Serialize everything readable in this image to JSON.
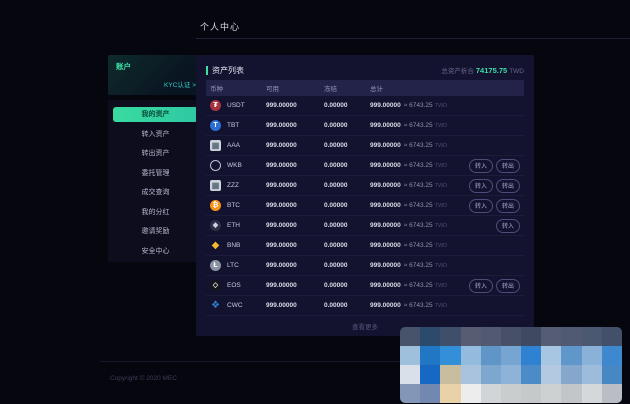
{
  "page": {
    "title": "个人中心",
    "copyright": "Copyright © 2020 MEC"
  },
  "sidebar": {
    "account_label": "账户",
    "kyc_link": "KYC认证 >",
    "menu": [
      {
        "label": "我的资产",
        "active": true
      },
      {
        "label": "转入资产",
        "active": false
      },
      {
        "label": "转出资产",
        "active": false
      },
      {
        "label": "委托管理",
        "active": false
      },
      {
        "label": "成交查询",
        "active": false
      },
      {
        "label": "我的分红",
        "active": false
      },
      {
        "label": "邀请奖励",
        "active": false
      },
      {
        "label": "安全中心",
        "active": false
      }
    ]
  },
  "assets": {
    "panel_title": "资产列表",
    "total_label": "总资产折合",
    "total_value": "74175.75",
    "total_currency": "TWD",
    "columns": [
      "币种",
      "可用",
      "冻结",
      "总计"
    ],
    "buttons": {
      "in": "转入",
      "out": "转出"
    },
    "load_more": "查看更多",
    "rows": [
      {
        "coin": "USDT",
        "available": "999.00000",
        "frozen": "0.00000",
        "total": "999.00000",
        "approx": "≈ 6743.25",
        "currency": "TWD",
        "actions": [],
        "icon": {
          "name": "usdt-icon",
          "glyph": "₮",
          "bg": "#a8333e",
          "fg": "#ffffff",
          "shape": "circle"
        }
      },
      {
        "coin": "TBT",
        "available": "999.00000",
        "frozen": "0.00000",
        "total": "999.00000",
        "approx": "≈ 6743.25",
        "currency": "TWD",
        "actions": [],
        "icon": {
          "name": "tbt-icon",
          "glyph": "T",
          "bg": "#2b6fd4",
          "fg": "#ffffff",
          "shape": "circle"
        }
      },
      {
        "coin": "AAA",
        "available": "999.00000",
        "frozen": "0.00000",
        "total": "999.00000",
        "approx": "≈ 6743.25",
        "currency": "TWD",
        "actions": [],
        "icon": {
          "name": "aaa-placeholder-icon",
          "glyph": "▦",
          "bg": "#ccd3dd",
          "fg": "#5b6b7d",
          "shape": "square"
        }
      },
      {
        "coin": "WKB",
        "available": "999.00000",
        "frozen": "0.00000",
        "total": "999.00000",
        "approx": "≈ 6743.25",
        "currency": "TWD",
        "actions": [
          "in",
          "out"
        ],
        "icon": {
          "name": "wkb-icon",
          "glyph": "",
          "bg": "transparent",
          "fg": "#b9c2cf",
          "shape": "ring"
        }
      },
      {
        "coin": "ZZZ",
        "available": "999.00000",
        "frozen": "0.00000",
        "total": "999.00000",
        "approx": "≈ 6743.25",
        "currency": "TWD",
        "actions": [
          "in",
          "out"
        ],
        "icon": {
          "name": "zzz-placeholder-icon",
          "glyph": "▦",
          "bg": "#ccd3dd",
          "fg": "#5b6b7d",
          "shape": "square"
        }
      },
      {
        "coin": "BTC",
        "available": "999.00000",
        "frozen": "0.00000",
        "total": "999.00000",
        "approx": "≈ 6743.25",
        "currency": "TWD",
        "actions": [
          "in",
          "out"
        ],
        "icon": {
          "name": "btc-icon",
          "glyph": "₿",
          "bg": "#f7931a",
          "fg": "#ffffff",
          "shape": "circle"
        }
      },
      {
        "coin": "ETH",
        "available": "999.00000",
        "frozen": "0.00000",
        "total": "999.00000",
        "approx": "≈ 6743.25",
        "currency": "TWD",
        "actions": [
          "in"
        ],
        "icon": {
          "name": "eth-icon",
          "glyph": "◆",
          "bg": "#2e2e46",
          "fg": "#cfd2e6",
          "shape": "circle"
        }
      },
      {
        "coin": "BNB",
        "available": "999.00000",
        "frozen": "0.00000",
        "total": "999.00000",
        "approx": "≈ 6743.25",
        "currency": "TWD",
        "actions": [],
        "icon": {
          "name": "bnb-icon",
          "glyph": "◆",
          "bg": "transparent",
          "fg": "#f3ba2f",
          "shape": "plain"
        }
      },
      {
        "coin": "LTC",
        "available": "999.00000",
        "frozen": "0.00000",
        "total": "999.00000",
        "approx": "≈ 6743.25",
        "currency": "TWD",
        "actions": [],
        "icon": {
          "name": "ltc-icon",
          "glyph": "Ł",
          "bg": "#8a93a2",
          "fg": "#ffffff",
          "shape": "circle"
        }
      },
      {
        "coin": "EOS",
        "available": "999.00000",
        "frozen": "0.00000",
        "total": "999.00000",
        "approx": "≈ 6743.25",
        "currency": "TWD",
        "actions": [
          "in",
          "out"
        ],
        "icon": {
          "name": "eos-icon",
          "glyph": "◇",
          "bg": "#14141d",
          "fg": "#e8e8f0",
          "shape": "circle"
        }
      },
      {
        "coin": "CWC",
        "available": "999.00000",
        "frozen": "0.00000",
        "total": "999.00000",
        "approx": "≈ 6743.25",
        "currency": "TWD",
        "actions": [],
        "icon": {
          "name": "cwc-icon",
          "glyph": "❖",
          "bg": "transparent",
          "fg": "#2f7fd6",
          "shape": "plain"
        }
      }
    ]
  },
  "censor_mosaic": {
    "colors": [
      [
        "#47536b",
        "#2c4a6b",
        "#3f4e69",
        "#565c72",
        "#525a73",
        "#475068",
        "#3f4a62",
        "#555d75",
        "#505a72",
        "#4a5870",
        "#42506a"
      ],
      [
        "#9fc0dd",
        "#2277c5",
        "#3390d8",
        "#93bbdd",
        "#6095c8",
        "#77a5d2",
        "#2f82d2",
        "#a6c6e2",
        "#5f97cb",
        "#8ab1d8",
        "#3e88cf"
      ],
      [
        "#d9e0ea",
        "#1668c2",
        "#c9bda0",
        "#a9c3de",
        "#7ea7d0",
        "#8fb3d8",
        "#4b8cc8",
        "#b2c9e1",
        "#86a7cc",
        "#9dbcdc",
        "#4788c4"
      ],
      [
        "#8496b8",
        "#7288b0",
        "#e9d2a8",
        "#ededee",
        "#d2d5d8",
        "#c9cdcd",
        "#c5c9c9",
        "#cdd1d1",
        "#c2c6c8",
        "#d5d8da",
        "#b8bec4"
      ]
    ]
  }
}
